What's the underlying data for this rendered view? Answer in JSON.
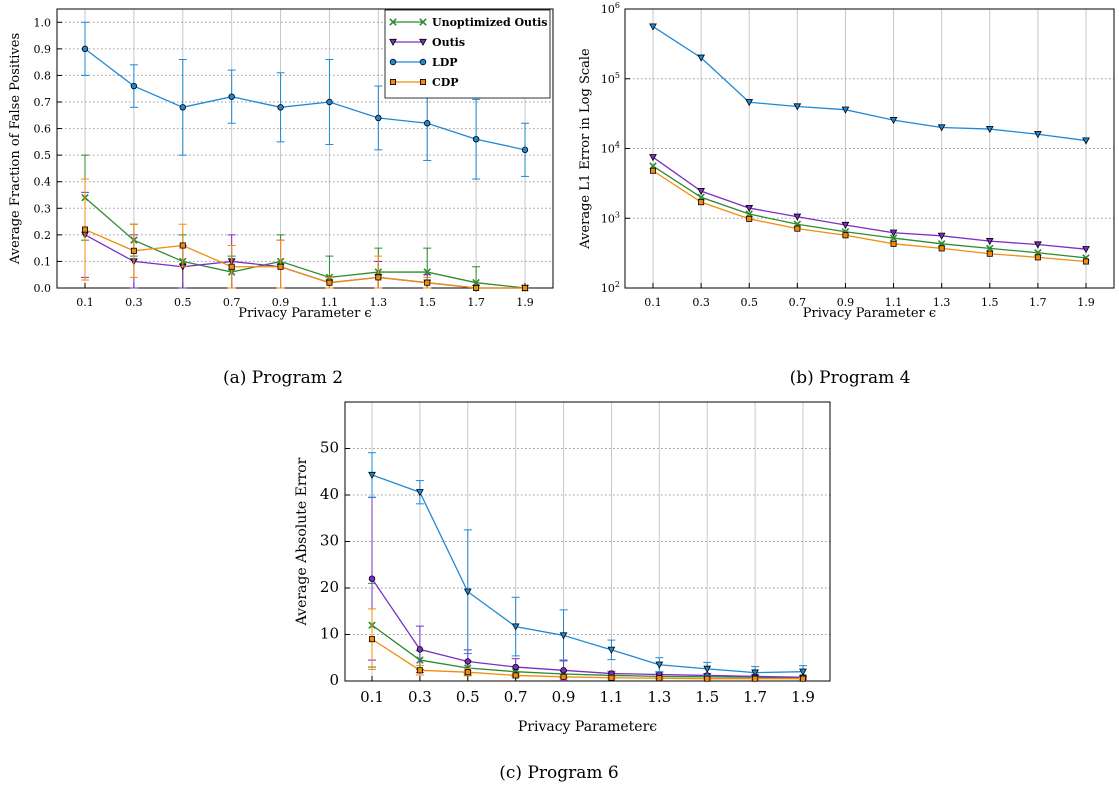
{
  "colors": {
    "Unoptimized Outis": "#2e8b2e",
    "Outis": "#7b2fc4",
    "LDP": "#1f88d6",
    "CDP": "#f28c0f"
  },
  "captions": {
    "a": "(a) Program 2",
    "b": "(b) Program 4",
    "c": "(c) Program 6"
  },
  "chart_data": [
    {
      "id": "a",
      "type": "line",
      "ylabel": "Average Fraction of False Positives",
      "xlabel": "Privacy Parameter ϵ",
      "ylim": [
        0,
        1.05
      ],
      "yticks": [
        0.0,
        0.1,
        0.2,
        0.3,
        0.4,
        0.5,
        0.6,
        0.7,
        0.8,
        0.9,
        1.0
      ],
      "grid": true,
      "legend": "top-right",
      "x": [
        0.1,
        0.3,
        0.5,
        0.7,
        0.9,
        1.1,
        1.3,
        1.5,
        1.7,
        1.9
      ],
      "series": [
        {
          "name": "Unoptimized Outis",
          "marker": "x",
          "values": [
            0.34,
            0.18,
            0.1,
            0.06,
            0.1,
            0.04,
            0.06,
            0.06,
            0.02,
            0.0
          ],
          "err": [
            0.16,
            0.06,
            0.1,
            0.06,
            0.1,
            0.08,
            0.09,
            0.09,
            0.06,
            0.0
          ]
        },
        {
          "name": "Outis",
          "marker": "v",
          "values": [
            0.2,
            0.1,
            0.08,
            0.1,
            0.08,
            0.02,
            0.04,
            0.02,
            0.0,
            0.0
          ],
          "err": [
            0.16,
            0.1,
            0.08,
            0.1,
            0.1,
            0.02,
            0.06,
            0.03,
            0.0,
            0.0
          ]
        },
        {
          "name": "LDP",
          "marker": "o",
          "values": [
            0.9,
            0.76,
            0.68,
            0.72,
            0.68,
            0.7,
            0.64,
            0.62,
            0.56,
            0.52
          ],
          "err": [
            0.1,
            0.08,
            0.18,
            0.1,
            0.13,
            0.16,
            0.12,
            0.14,
            0.15,
            0.1
          ]
        },
        {
          "name": "CDP",
          "marker": "s",
          "values": [
            0.22,
            0.14,
            0.16,
            0.08,
            0.08,
            0.02,
            0.04,
            0.02,
            0.0,
            0.0
          ],
          "err": [
            0.19,
            0.1,
            0.08,
            0.08,
            0.1,
            0.02,
            0.08,
            0.02,
            0.0,
            0.0
          ]
        }
      ]
    },
    {
      "id": "b",
      "type": "line",
      "yscale": "log",
      "ylabel": "Average L1 Error in Log Scale",
      "xlabel": "Privacy Parameter ϵ",
      "ylim": [
        100,
        1000000
      ],
      "ytick_exponents": [
        2,
        3,
        4,
        5,
        6
      ],
      "grid": true,
      "x": [
        0.1,
        0.3,
        0.5,
        0.7,
        0.9,
        1.1,
        1.3,
        1.5,
        1.7,
        1.9
      ],
      "series": [
        {
          "name": "Unoptimized Outis",
          "marker": "x",
          "values": [
            5600,
            2000,
            1150,
            820,
            640,
            520,
            430,
            370,
            320,
            270
          ]
        },
        {
          "name": "Outis",
          "marker": "v",
          "values": [
            7500,
            2450,
            1400,
            1050,
            800,
            620,
            560,
            470,
            420,
            360
          ]
        },
        {
          "name": "LDP",
          "marker": "v",
          "values": [
            560000,
            200000,
            46000,
            40000,
            36000,
            25500,
            20000,
            19000,
            16000,
            13000
          ]
        },
        {
          "name": "CDP",
          "marker": "s",
          "values": [
            4800,
            1700,
            980,
            710,
            570,
            430,
            370,
            310,
            275,
            240
          ]
        }
      ]
    },
    {
      "id": "c",
      "type": "line",
      "ylabel": "Average Absolute Error",
      "xlabel": "Privacy Parameterϵ",
      "ylim": [
        0,
        60
      ],
      "yticks": [
        0,
        10,
        20,
        30,
        40,
        50
      ],
      "grid": true,
      "x": [
        0.1,
        0.3,
        0.5,
        0.7,
        0.9,
        1.1,
        1.3,
        1.5,
        1.7,
        1.9
      ],
      "series": [
        {
          "name": "Unoptimized Outis",
          "marker": "x",
          "values": [
            12.0,
            4.5,
            2.8,
            2.0,
            1.5,
            1.2,
            1.0,
            0.9,
            0.8,
            0.7
          ],
          "err": [
            9.0,
            2.0,
            1.5,
            1.0,
            0.8,
            0.5,
            0.4,
            0.3,
            0.3,
            0.2
          ]
        },
        {
          "name": "Outis",
          "marker": "o",
          "values": [
            22.0,
            6.8,
            4.2,
            3.0,
            2.3,
            1.6,
            1.4,
            1.2,
            1.0,
            0.8
          ],
          "err": [
            17.5,
            5.0,
            2.5,
            1.8,
            2.2,
            0.5,
            0.5,
            0.4,
            0.3,
            0.3
          ]
        },
        {
          "name": "LDP",
          "marker": "v",
          "values": [
            44.3,
            40.6,
            19.2,
            11.7,
            9.8,
            6.7,
            3.5,
            2.6,
            1.8,
            2.0
          ],
          "err": [
            4.8,
            2.5,
            13.3,
            6.3,
            5.5,
            2.1,
            1.5,
            1.4,
            1.3,
            1.3
          ]
        },
        {
          "name": "CDP",
          "marker": "s",
          "values": [
            9.0,
            2.3,
            1.9,
            1.2,
            0.9,
            0.7,
            0.6,
            0.5,
            0.5,
            0.5
          ],
          "err": [
            6.5,
            1.0,
            0.8,
            0.5,
            0.4,
            0.3,
            0.2,
            0.2,
            0.2,
            0.2
          ]
        }
      ]
    }
  ]
}
